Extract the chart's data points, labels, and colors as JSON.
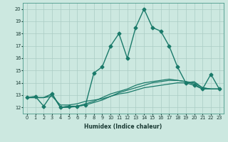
{
  "title": "",
  "xlabel": "Humidex (Indice chaleur)",
  "ylabel": "",
  "background_color": "#cce8e0",
  "grid_color": "#aaccc4",
  "line_color": "#1a7a6a",
  "xlim": [
    -0.5,
    23.5
  ],
  "ylim": [
    11.5,
    20.5
  ],
  "yticks": [
    12,
    13,
    14,
    15,
    16,
    17,
    18,
    19,
    20
  ],
  "xticks": [
    0,
    1,
    2,
    3,
    4,
    5,
    6,
    7,
    8,
    9,
    10,
    11,
    12,
    13,
    14,
    15,
    16,
    17,
    18,
    19,
    20,
    21,
    22,
    23
  ],
  "series": [
    {
      "x": [
        0,
        1,
        2,
        3,
        4,
        5,
        6,
        7,
        8,
        9,
        10,
        11,
        12,
        13,
        14,
        15,
        16,
        17,
        18,
        19,
        20,
        21,
        22,
        23
      ],
      "y": [
        12.8,
        12.9,
        12.1,
        13.1,
        12.0,
        12.1,
        12.1,
        12.2,
        14.8,
        15.3,
        17.0,
        18.0,
        16.0,
        18.5,
        20.0,
        18.5,
        18.2,
        17.0,
        15.3,
        14.0,
        13.8,
        13.5,
        14.7,
        13.5
      ],
      "marker": "D",
      "markersize": 2.5,
      "linewidth": 1.0
    },
    {
      "x": [
        0,
        1,
        2,
        3,
        4,
        5,
        6,
        7,
        8,
        9,
        10,
        11,
        12,
        13,
        14,
        15,
        16,
        17,
        18,
        19,
        20,
        21,
        22,
        23
      ],
      "y": [
        12.8,
        12.8,
        12.8,
        12.9,
        12.2,
        12.2,
        12.3,
        12.5,
        12.6,
        12.7,
        12.9,
        13.1,
        13.2,
        13.4,
        13.6,
        13.7,
        13.8,
        13.9,
        14.0,
        14.0,
        14.1,
        13.6,
        13.5,
        13.5
      ],
      "marker": null,
      "markersize": 0,
      "linewidth": 0.9
    },
    {
      "x": [
        0,
        1,
        2,
        3,
        4,
        5,
        6,
        7,
        8,
        9,
        10,
        11,
        12,
        13,
        14,
        15,
        16,
        17,
        18,
        19,
        20,
        21,
        22,
        23
      ],
      "y": [
        12.8,
        12.8,
        12.8,
        13.1,
        12.0,
        12.1,
        12.1,
        12.2,
        12.4,
        12.6,
        12.9,
        13.2,
        13.4,
        13.6,
        13.8,
        14.0,
        14.1,
        14.2,
        14.2,
        14.1,
        14.0,
        13.6,
        13.5,
        13.5
      ],
      "marker": null,
      "markersize": 0,
      "linewidth": 0.9
    },
    {
      "x": [
        0,
        1,
        2,
        3,
        4,
        5,
        6,
        7,
        8,
        9,
        10,
        11,
        12,
        13,
        14,
        15,
        16,
        17,
        18,
        19,
        20,
        21,
        22,
        23
      ],
      "y": [
        12.8,
        12.8,
        12.8,
        13.1,
        12.0,
        12.0,
        12.1,
        12.3,
        12.5,
        12.8,
        13.1,
        13.3,
        13.5,
        13.8,
        14.0,
        14.1,
        14.2,
        14.3,
        14.2,
        14.1,
        13.9,
        13.5,
        13.5,
        13.5
      ],
      "marker": null,
      "markersize": 0,
      "linewidth": 0.9
    }
  ],
  "xlabel_fontsize": 5.5,
  "xlabel_fontweight": "bold",
  "tick_fontsize": 4.8,
  "xlabel_color": "#1a3a34"
}
